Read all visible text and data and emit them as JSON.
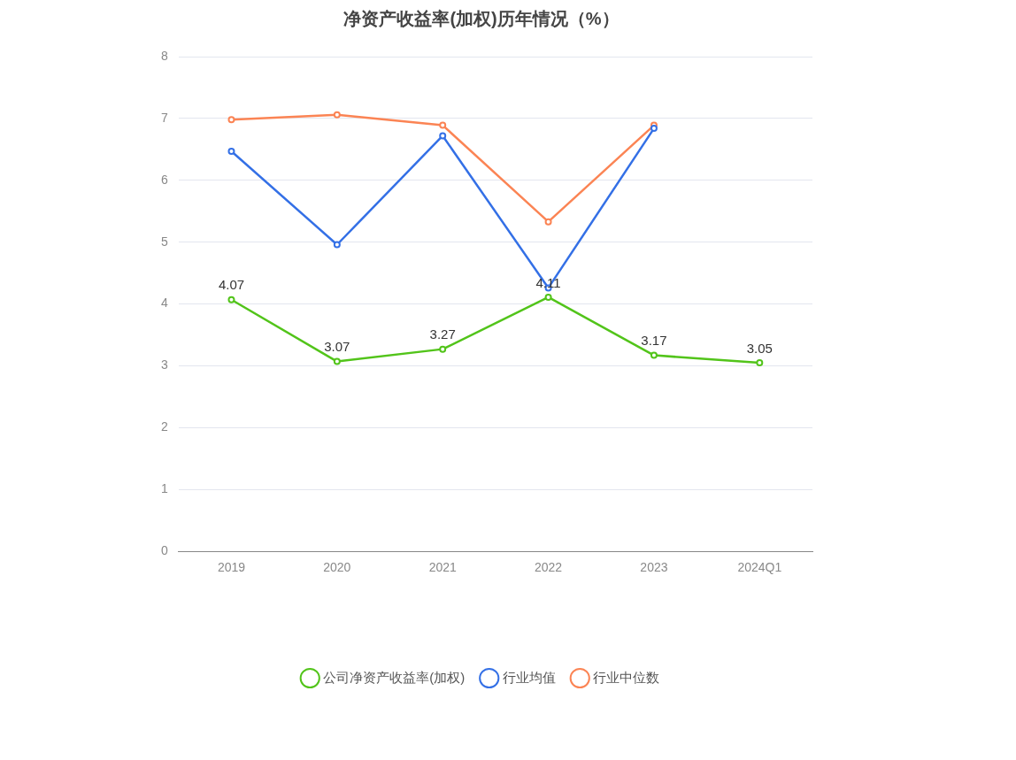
{
  "chart_data": {
    "type": "line",
    "title": "净资产收益率(加权)历年情况（%）",
    "categories": [
      "2019",
      "2020",
      "2021",
      "2022",
      "2023",
      "2024Q1"
    ],
    "series": [
      {
        "name": "公司净资产收益率(加权)",
        "color": "#52c41a",
        "values": [
          4.07,
          3.07,
          3.27,
          4.11,
          3.17,
          3.05
        ],
        "value_labels": [
          "4.07",
          "3.07",
          "3.27",
          "4.11",
          "3.17",
          "3.05"
        ]
      },
      {
        "name": "行业均值",
        "color": "#3470e6",
        "values": [
          6.47,
          4.96,
          6.72,
          4.26,
          6.84,
          null
        ]
      },
      {
        "name": "行业中位数",
        "color": "#fb8454",
        "values": [
          6.98,
          7.06,
          6.89,
          5.33,
          6.89,
          null
        ]
      }
    ],
    "ylim": [
      0,
      8
    ],
    "yticks": [
      0,
      1,
      2,
      3,
      4,
      5,
      6,
      7,
      8
    ],
    "grid": "y",
    "legend": "bottom",
    "marker": "circle",
    "line_style": "solid"
  }
}
